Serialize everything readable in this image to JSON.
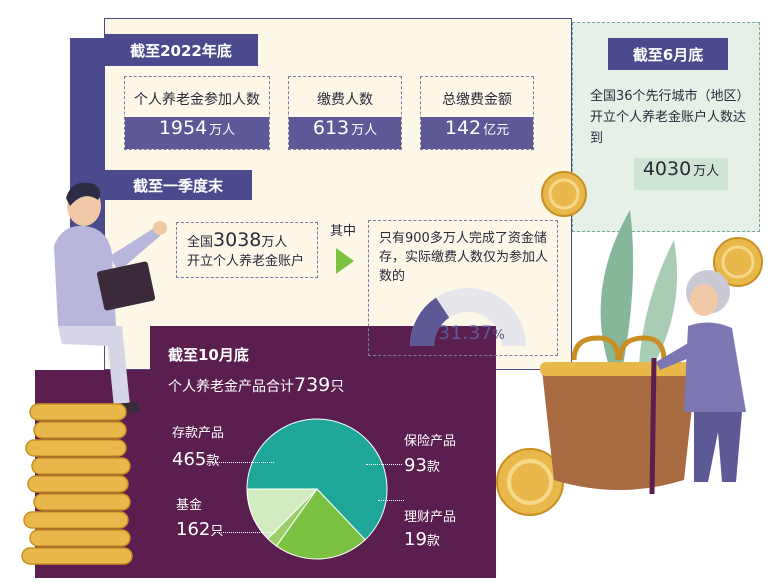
{
  "section_2022": {
    "header": "截至2022年底",
    "stats": [
      {
        "label": "个人养老金参加人数",
        "value": "1954",
        "unit": "万人"
      },
      {
        "label": "缴费人数",
        "value": "613",
        "unit": "万人"
      },
      {
        "label": "总缴费金额",
        "value": "142",
        "unit": "亿元"
      }
    ]
  },
  "section_q1": {
    "header": "截至一季度末",
    "box1_pre": "全国",
    "box1_num": "3038",
    "box1_unit": "万人",
    "box1_line2": "开立个人养老金账户",
    "connector": "其中",
    "box2_text": "只有900多万人完成了资金储存，实际缴费人数仅为参加人数的",
    "gauge_value": "31.37",
    "gauge_unit": "%",
    "gauge_fraction": 0.3137
  },
  "section_june": {
    "header": "截至6月底",
    "text": "全国36个先行城市（地区）开立个人养老金账户人数达到",
    "value": "4030",
    "unit": "万人"
  },
  "section_oct": {
    "header": "截至10月底",
    "total_pre": "个人养老金产品合计",
    "total_num": "739",
    "total_unit": "只"
  },
  "chart_data": {
    "type": "pie",
    "title": "",
    "series": [
      {
        "name": "存款产品",
        "value": 465,
        "unit": "款",
        "color": "#1fa89a"
      },
      {
        "name": "基金",
        "value": 162,
        "unit": "只",
        "color": "#7cc242"
      },
      {
        "name": "理财产品",
        "value": 19,
        "unit": "款",
        "color": "#9ccf6a"
      },
      {
        "name": "保险产品",
        "value": 93,
        "unit": "款",
        "color": "#d3ebc0"
      }
    ]
  },
  "colors": {
    "purple_dark": "#4a4a8c",
    "plum": "#5a1f4e",
    "cream": "#fdf7e8",
    "mint": "#e5f0e6",
    "teal": "#1fa89a",
    "green": "#7cc242"
  }
}
